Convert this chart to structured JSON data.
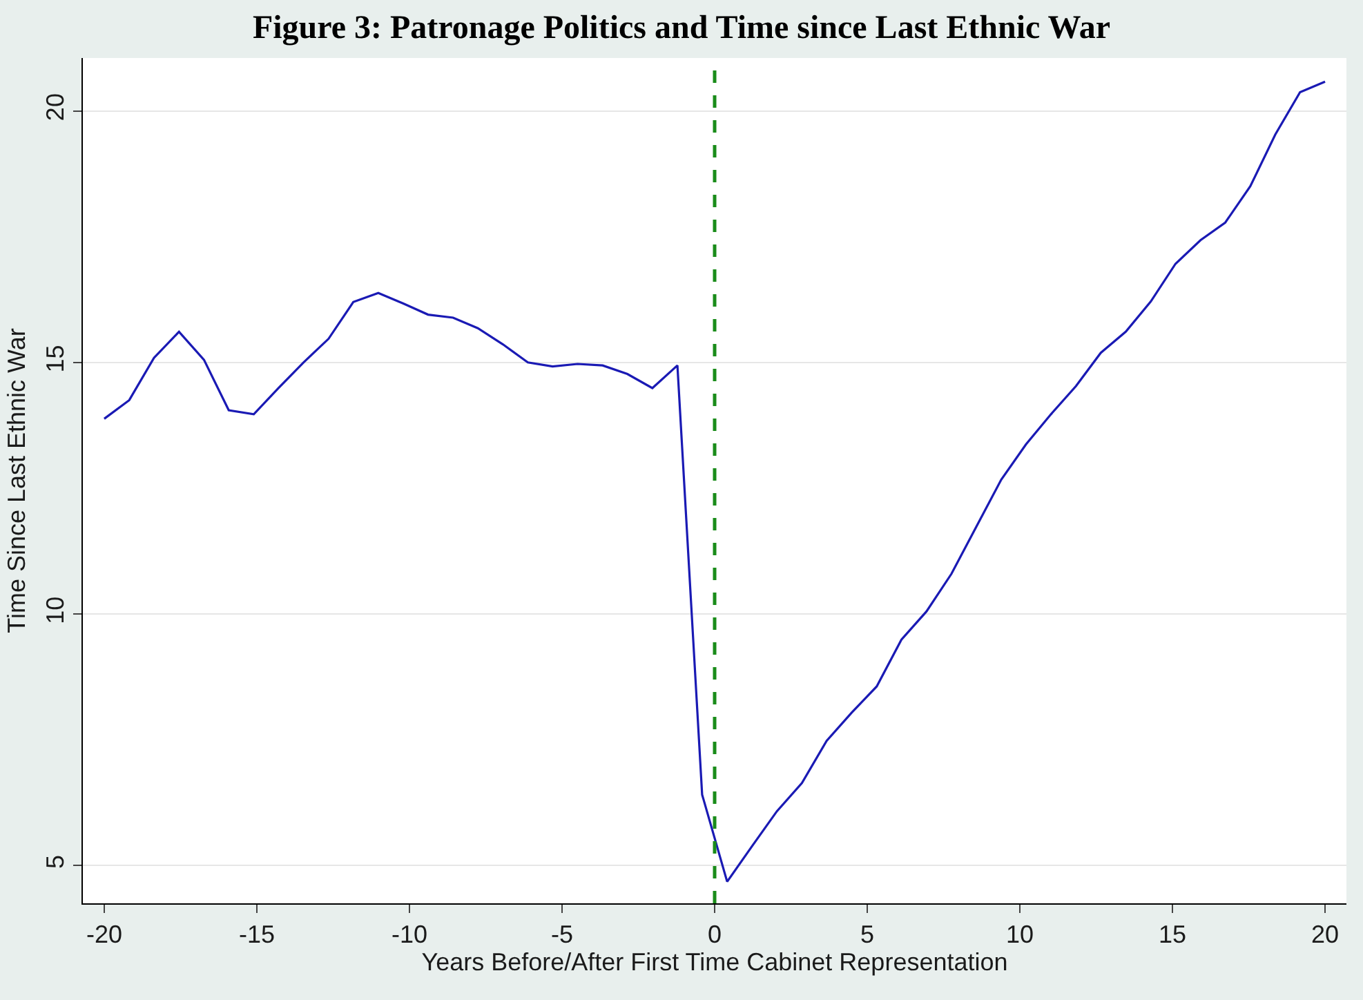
{
  "chart_data": {
    "type": "line",
    "title": "Figure 3: Patronage Politics and Time since Last Ethnic War",
    "xlabel": "Years Before/After First Time Cabinet Representation",
    "ylabel": "Time Since Last Ethnic War",
    "x": [
      -20,
      -19.18,
      -18.37,
      -17.55,
      -16.73,
      -15.92,
      -15.1,
      -14.29,
      -13.47,
      -12.65,
      -11.84,
      -11.02,
      -10.2,
      -9.39,
      -8.57,
      -7.76,
      -6.94,
      -6.12,
      -5.31,
      -4.49,
      -3.67,
      -2.86,
      -2.04,
      -1.22,
      -0.41,
      0.41,
      1.22,
      2.04,
      2.86,
      3.67,
      4.49,
      5.31,
      6.12,
      6.94,
      7.76,
      8.57,
      9.39,
      10.2,
      11.02,
      11.84,
      12.65,
      13.47,
      14.29,
      15.1,
      15.92,
      16.73,
      17.55,
      18.37,
      19.18,
      20
    ],
    "series": [
      {
        "color": "#1a1ab4",
        "values": [
          13.88,
          14.25,
          15.09,
          15.61,
          15.05,
          14.05,
          13.97,
          14.49,
          15.0,
          15.47,
          16.2,
          16.38,
          16.17,
          15.95,
          15.89,
          15.68,
          15.36,
          15.0,
          14.92,
          14.97,
          14.94,
          14.77,
          14.49,
          14.94,
          6.41,
          4.68,
          5.38,
          6.08,
          6.64,
          7.48,
          8.04,
          8.56,
          9.49,
          10.05,
          10.8,
          11.73,
          12.67,
          13.37,
          13.97,
          14.53,
          15.19,
          15.61,
          16.21,
          16.96,
          17.43,
          17.78,
          18.5,
          19.53,
          20.37,
          20.58
        ]
      }
    ],
    "xlim": [
      -20.7,
      20.7
    ],
    "xticks": [
      -20,
      -15,
      -10,
      -5,
      0,
      5,
      10,
      15,
      20
    ],
    "ylim": [
      4.25,
      21.05
    ],
    "yticks": [
      5,
      10,
      15,
      20
    ],
    "ref_lines": [
      {
        "axis": "x",
        "value": 0,
        "color": "#1a8c1a",
        "line_style": "dashed"
      }
    ],
    "grid": "y",
    "line_style": "solid",
    "marker": "none"
  }
}
